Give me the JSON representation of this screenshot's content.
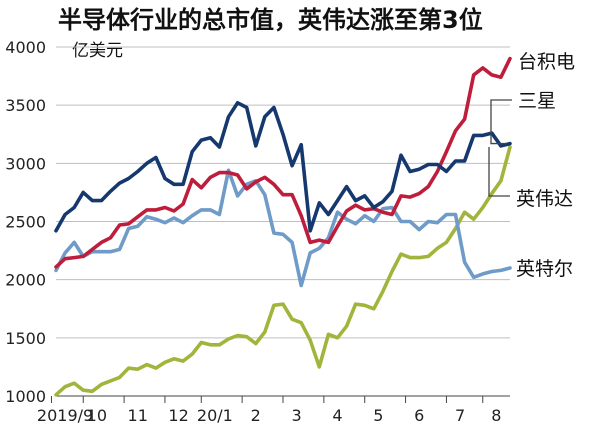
{
  "chart_data": {
    "type": "line",
    "title": "半导体行业的总市值，英伟达涨至第3位",
    "ylabel": "亿美元",
    "xlabel": "",
    "ylim": [
      1000,
      4000
    ],
    "yticks": [
      1000,
      1500,
      2000,
      2500,
      3000,
      3500,
      4000
    ],
    "grid": true,
    "xlim": [
      0,
      50
    ],
    "month_ticks": [
      {
        "label": "2019/9",
        "x": 1
      },
      {
        "label": "10",
        "x": 4.5
      },
      {
        "label": "11",
        "x": 9
      },
      {
        "label": "12",
        "x": 13.5
      },
      {
        "label": "20/1",
        "x": 17.5
      },
      {
        "label": "2",
        "x": 22
      },
      {
        "label": "3",
        "x": 26.5
      },
      {
        "label": "4",
        "x": 31
      },
      {
        "label": "5",
        "x": 35.5
      },
      {
        "label": "6",
        "x": 40
      },
      {
        "label": "7",
        "x": 44.5
      },
      {
        "label": "8",
        "x": 48.5
      }
    ],
    "series": [
      {
        "name": "台积电",
        "color": "#be1e3c",
        "values": [
          2110,
          2180,
          2190,
          2200,
          2260,
          2320,
          2360,
          2470,
          2480,
          2540,
          2600,
          2600,
          2620,
          2590,
          2650,
          2860,
          2790,
          2880,
          2920,
          2920,
          2900,
          2780,
          2840,
          2880,
          2820,
          2730,
          2730,
          2550,
          2320,
          2340,
          2320,
          2460,
          2590,
          2640,
          2600,
          2610,
          2580,
          2560,
          2720,
          2710,
          2740,
          2800,
          2930,
          3100,
          3280,
          3380,
          3760,
          3820,
          3760,
          3740,
          3900
        ]
      },
      {
        "name": "三星",
        "color": "#15386e",
        "values": [
          2420,
          2560,
          2620,
          2750,
          2680,
          2680,
          2760,
          2830,
          2870,
          2930,
          3000,
          3050,
          2870,
          2820,
          2820,
          3100,
          3200,
          3220,
          3140,
          3400,
          3520,
          3480,
          3150,
          3400,
          3480,
          3250,
          2980,
          3160,
          2420,
          2660,
          2560,
          2680,
          2800,
          2680,
          2720,
          2620,
          2670,
          2760,
          3070,
          2930,
          2950,
          2990,
          2990,
          2930,
          3020,
          3020,
          3240,
          3240,
          3260,
          3150,
          3170
        ]
      },
      {
        "name": "英伟达",
        "color": "#a2b43c",
        "values": [
          1010,
          1080,
          1110,
          1050,
          1040,
          1100,
          1130,
          1160,
          1240,
          1230,
          1270,
          1240,
          1290,
          1320,
          1300,
          1360,
          1460,
          1440,
          1440,
          1490,
          1520,
          1510,
          1450,
          1550,
          1780,
          1790,
          1660,
          1630,
          1480,
          1250,
          1530,
          1500,
          1600,
          1790,
          1780,
          1750,
          1900,
          2070,
          2220,
          2190,
          2190,
          2200,
          2270,
          2320,
          2440,
          2580,
          2520,
          2620,
          2740,
          2850,
          3140
        ]
      },
      {
        "name": "英特尔",
        "color": "#6e9bc8",
        "values": [
          2080,
          2230,
          2320,
          2200,
          2240,
          2240,
          2240,
          2260,
          2440,
          2460,
          2540,
          2520,
          2490,
          2530,
          2490,
          2550,
          2600,
          2600,
          2560,
          2940,
          2720,
          2820,
          2850,
          2730,
          2400,
          2390,
          2320,
          1950,
          2230,
          2270,
          2360,
          2580,
          2520,
          2480,
          2550,
          2500,
          2610,
          2620,
          2500,
          2500,
          2430,
          2500,
          2490,
          2560,
          2560,
          2150,
          2020,
          2050,
          2070,
          2080,
          2100
        ]
      }
    ]
  }
}
